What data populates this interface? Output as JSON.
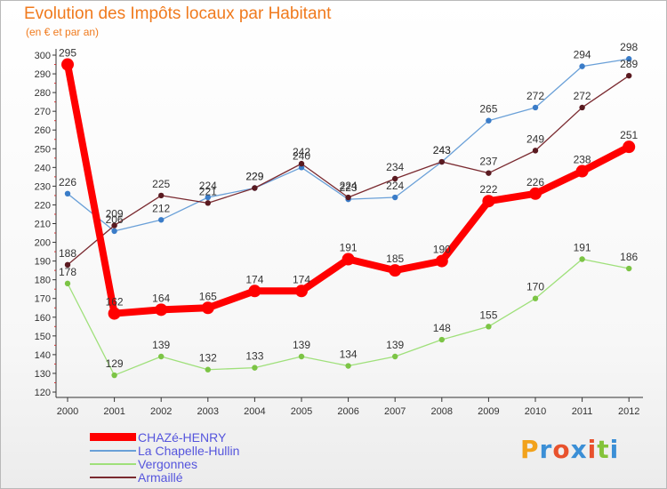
{
  "title": "Evolution des Impôts locaux par Habitant",
  "subtitle": "(en € et par an)",
  "logo": "Proxiti",
  "colors": {
    "CHAZé-HENRY": "#ff0000",
    "La Chapelle-Hullin": "#6aa0d8",
    "Vergonnes": "#9fe07a",
    "Armaillé": "#7a2a30",
    "title": "#f07a1d",
    "legend_text": "#5555dd"
  },
  "chart_data": {
    "type": "line",
    "title": "Evolution des Impôts locaux par Habitant",
    "subtitle": "(en € et par an)",
    "xlabel": "",
    "ylabel": "",
    "x": [
      "2000",
      "2001",
      "2002",
      "2003",
      "2004",
      "2005",
      "2006",
      "2007",
      "2008",
      "2009",
      "2010",
      "2011",
      "2012"
    ],
    "ylim": [
      120,
      300
    ],
    "ytick_step": 10,
    "grid": false,
    "legend_position": "bottom-left",
    "series": [
      {
        "name": "CHAZé-HENRY",
        "values": [
          295,
          162,
          164,
          165,
          174,
          174,
          191,
          185,
          190,
          222,
          226,
          238,
          251
        ]
      },
      {
        "name": "La Chapelle-Hullin",
        "values": [
          226,
          206,
          212,
          224,
          229,
          240,
          223,
          224,
          243,
          265,
          272,
          294,
          298
        ]
      },
      {
        "name": "Vergonnes",
        "values": [
          178,
          129,
          139,
          132,
          133,
          139,
          134,
          139,
          148,
          155,
          170,
          191,
          186
        ]
      },
      {
        "name": "Armaillé",
        "values": [
          188,
          209,
          225,
          221,
          229,
          242,
          224,
          234,
          243,
          237,
          249,
          272,
          289
        ]
      }
    ]
  }
}
